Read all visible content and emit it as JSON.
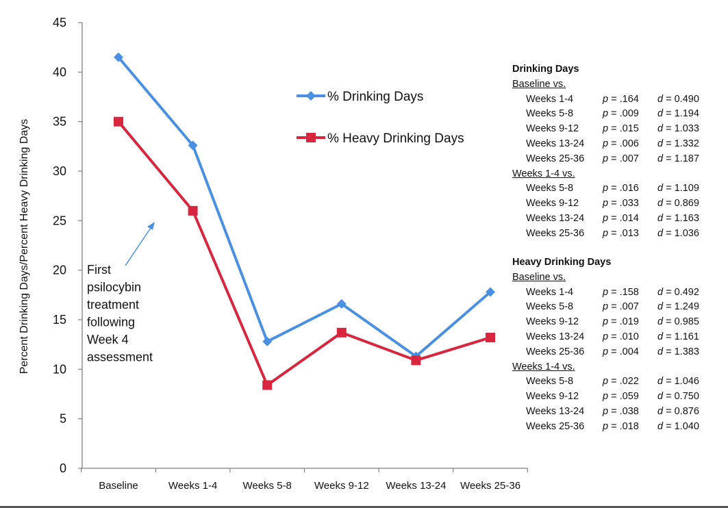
{
  "chart_data": {
    "type": "line",
    "categories": [
      "Baseline",
      "Weeks 1-4",
      "Weeks 5-8",
      "Weeks 9-12",
      "Weeks 13-24",
      "Weeks 25-36"
    ],
    "series": [
      {
        "name": "% Drinking Days",
        "values": [
          41.5,
          32.6,
          12.8,
          16.6,
          11.3,
          17.8
        ],
        "color": "#4a90e2",
        "marker": "diamond"
      },
      {
        "name": "% Heavy Drinking Days",
        "values": [
          35.0,
          26.0,
          8.4,
          13.7,
          10.9,
          13.2
        ],
        "color": "#d7263d",
        "marker": "square"
      }
    ],
    "ylabel": "Percent Drinking Days/Percent Heavy Drinking Days",
    "xlabel": "",
    "ylim": [
      0,
      45
    ],
    "yticks": [
      "0",
      "5",
      "10",
      "15",
      "20",
      "25",
      "30",
      "35",
      "40",
      "45"
    ],
    "grid": false,
    "legend_position": "top-center",
    "annotation": {
      "lines": [
        "First",
        "psilocybin",
        "treatment",
        "following",
        "Week 4",
        "assessment"
      ],
      "arrow_color": "#4a90e2"
    }
  },
  "stats": {
    "drinking_days": {
      "title": "Drinking Days",
      "groups": [
        {
          "heading": "Baseline vs.",
          "rows": [
            {
              "label": "Weeks 1-4",
              "p": ".164",
              "d": "0.490"
            },
            {
              "label": "Weeks 5-8",
              "p": ".009",
              "d": "1.194"
            },
            {
              "label": "Weeks 9-12",
              "p": ".015",
              "d": "1.033"
            },
            {
              "label": "Weeks 13-24",
              "p": ".006",
              "d": "1.332"
            },
            {
              "label": "Weeks 25-36",
              "p": ".007",
              "d": "1.187"
            }
          ]
        },
        {
          "heading": "Weeks 1-4 vs.",
          "rows": [
            {
              "label": "Weeks 5-8",
              "p": ".016",
              "d": "1.109"
            },
            {
              "label": "Weeks 9-12",
              "p": ".033",
              "d": "0.869"
            },
            {
              "label": "Weeks 13-24",
              "p": ".014",
              "d": "1.163"
            },
            {
              "label": "Weeks 25-36",
              "p": ".013",
              "d": "1.036"
            }
          ]
        }
      ]
    },
    "heavy_drinking_days": {
      "title": "Heavy Drinking Days",
      "groups": [
        {
          "heading": "Baseline vs.",
          "rows": [
            {
              "label": "Weeks 1-4",
              "p": ".158",
              "d": "0.492"
            },
            {
              "label": "Weeks 5-8",
              "p": ".007",
              "d": "1.249"
            },
            {
              "label": "Weeks 9-12",
              "p": ".019",
              "d": "0.985"
            },
            {
              "label": "Weeks 13-24",
              "p": ".010",
              "d": "1.161"
            },
            {
              "label": "Weeks 25-36",
              "p": ".004",
              "d": "1.383"
            }
          ]
        },
        {
          "heading": "Weeks 1-4 vs.",
          "rows": [
            {
              "label": "Weeks 5-8",
              "p": ".022",
              "d": "1.046"
            },
            {
              "label": "Weeks 9-12",
              "p": ".059",
              "d": "0.750"
            },
            {
              "label": "Weeks 13-24",
              "p": ".038",
              "d": "0.876"
            },
            {
              "label": "Weeks 25-36",
              "p": ".018",
              "d": "1.040"
            }
          ]
        }
      ]
    },
    "p_symbol": "p",
    "d_symbol": "d"
  }
}
